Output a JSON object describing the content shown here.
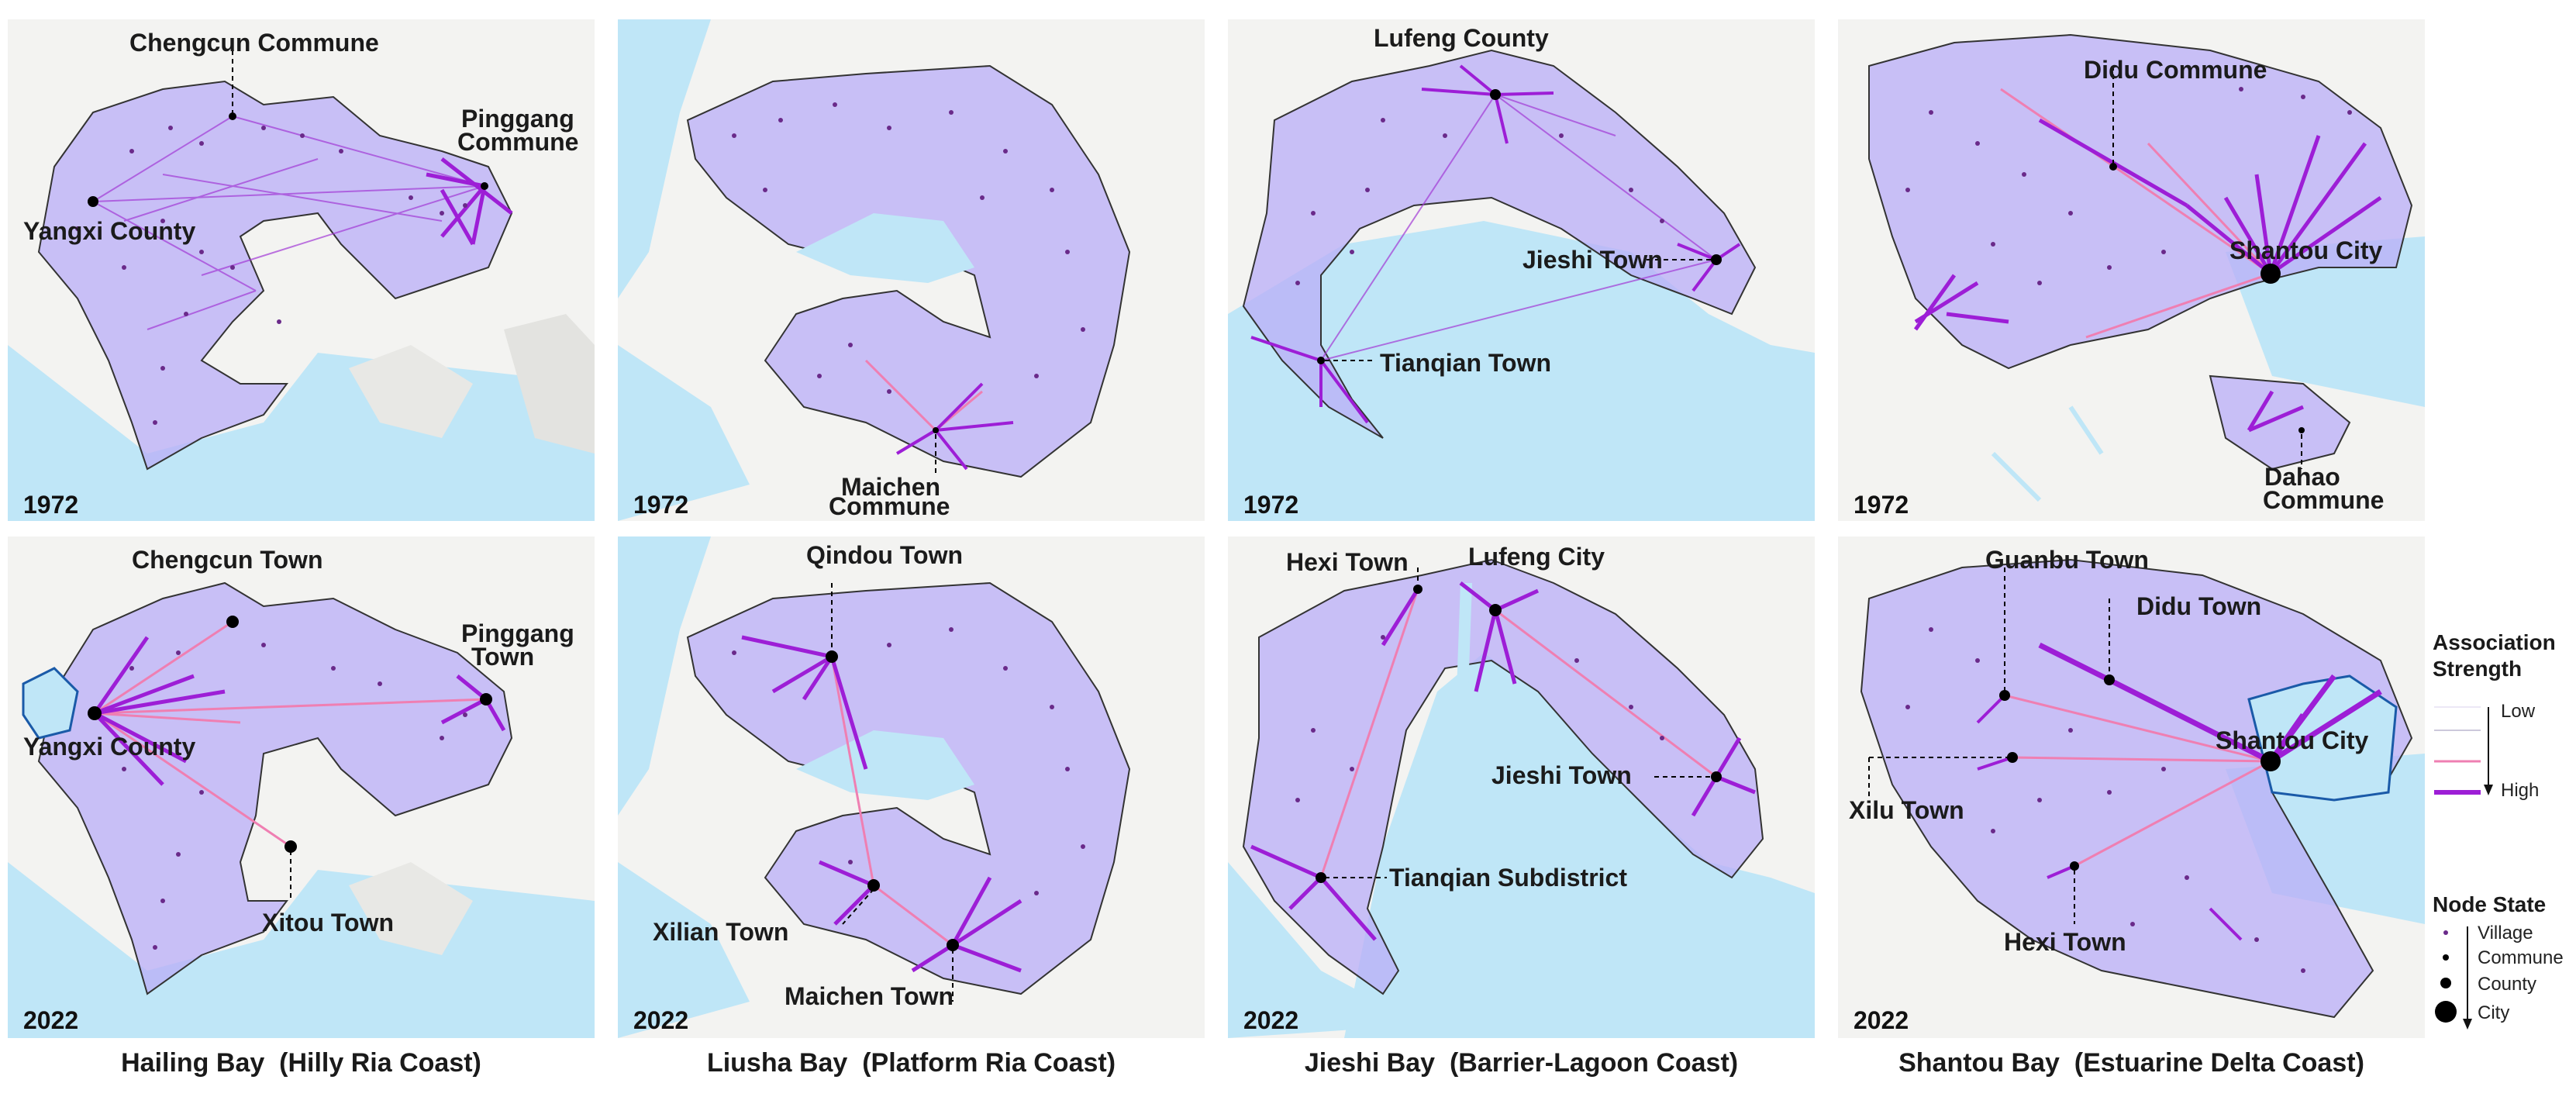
{
  "columns": [
    {
      "title": "Hailing Bay  (Hilly Ria Coast)"
    },
    {
      "title": "Liusha Bay  (Platform Ria Coast)"
    },
    {
      "title": "Jieshi Bay  (Barrier-Lagoon Coast)"
    },
    {
      "title": "Shantou Bay  (Estuarine Delta Coast)"
    }
  ],
  "panels": [
    {
      "year": "1972",
      "labels": [
        "Chengcun Commune",
        "Pinggang",
        "Commune",
        "Yangxi County"
      ]
    },
    {
      "year": "1972",
      "labels": [
        "Maichen",
        "Commune"
      ]
    },
    {
      "year": "1972",
      "labels": [
        "Lufeng County",
        "Jieshi Town",
        "Tianqian Town"
      ]
    },
    {
      "year": "1972",
      "labels": [
        "Didu Commune",
        "Shantou City",
        "Dahao",
        "Commune"
      ]
    },
    {
      "year": "2022",
      "labels": [
        "Chengcun Town",
        "Pinggang",
        "Town",
        "Yangxi County",
        "Xitou Town"
      ]
    },
    {
      "year": "2022",
      "labels": [
        "Qindou Town",
        "Xilian Town",
        "Maichen Town"
      ]
    },
    {
      "year": "2022",
      "labels": [
        "Hexi Town",
        "Lufeng City",
        "Jieshi Town",
        "Tianqian Subdistrict"
      ]
    },
    {
      "year": "2022",
      "labels": [
        "Guanbu Town",
        "Didu Town",
        "Shantou City",
        "Xilu Town",
        "Hexi Town"
      ]
    }
  ],
  "legend": {
    "association_title_1": "Association",
    "association_title_2": "Strength",
    "low": "Low",
    "high": "High",
    "node_title": "Node State",
    "nodes": [
      "Village",
      "Commune",
      "County",
      "City"
    ]
  },
  "colors": {
    "water": "#bfe6f7",
    "land": "#f3f3f1",
    "region_fill": "#b9aef7",
    "link_high": "#9d1ed6",
    "link_mid": "#ef7fb2",
    "village_dot": "#6a2a8a"
  }
}
